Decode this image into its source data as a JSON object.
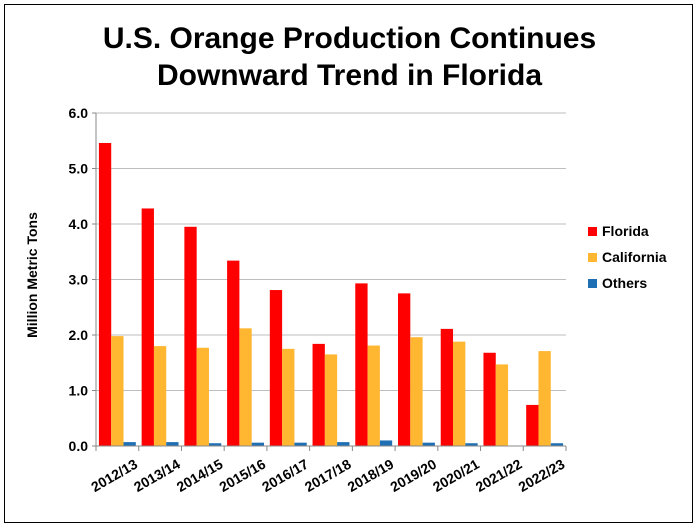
{
  "title_line1": "U.S. Orange Production Continues",
  "title_line2": "Downward Trend in Florida",
  "colors": {
    "Florida": "#FF0000",
    "California": "#FFB631",
    "Others": "#1F6FB4",
    "grid": "#BEBEBE"
  },
  "chart_data": {
    "type": "bar",
    "title": "U.S. Orange Production Continues Downward Trend in Florida",
    "xlabel": "",
    "ylabel": "Million Metric Tons",
    "ylim": [
      0,
      6
    ],
    "yticks": [
      "0.0",
      "1.0",
      "2.0",
      "3.0",
      "4.0",
      "5.0",
      "6.0"
    ],
    "grid": true,
    "legend_position": "right",
    "categories": [
      "2012/13",
      "2013/14",
      "2014/15",
      "2015/16",
      "2016/17",
      "2017/18",
      "2018/19",
      "2019/20",
      "2020/21",
      "2021/22",
      "2022/23"
    ],
    "series": [
      {
        "name": "Florida",
        "values": [
          5.46,
          4.28,
          3.95,
          3.34,
          2.81,
          1.84,
          2.93,
          2.75,
          2.11,
          1.68,
          0.74
        ]
      },
      {
        "name": "California",
        "values": [
          1.98,
          1.8,
          1.77,
          2.12,
          1.75,
          1.65,
          1.81,
          1.96,
          1.88,
          1.47,
          1.71
        ]
      },
      {
        "name": "Others",
        "values": [
          0.07,
          0.07,
          0.05,
          0.06,
          0.06,
          0.07,
          0.1,
          0.06,
          0.05,
          0.0,
          0.05
        ]
      }
    ]
  }
}
